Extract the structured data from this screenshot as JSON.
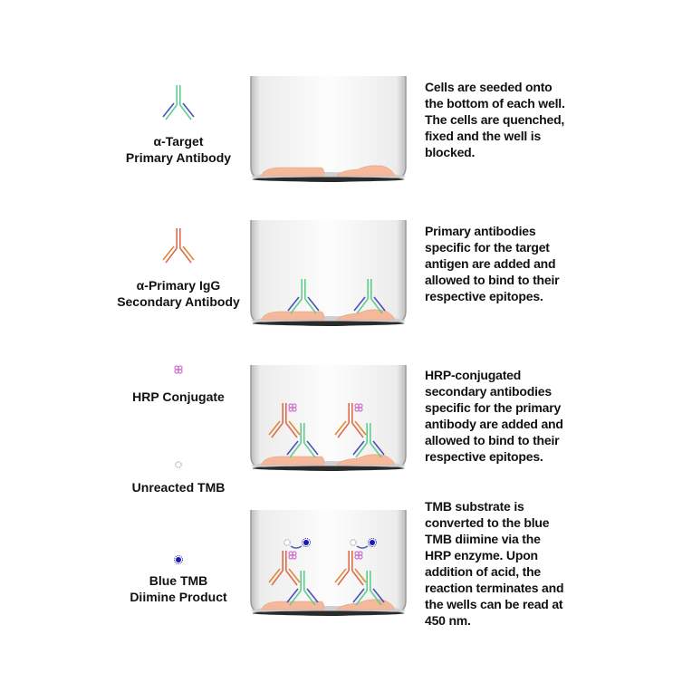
{
  "legend": {
    "primary_antibody": [
      "α-Target",
      "Primary Antibody"
    ],
    "secondary_antibody": [
      "α-Primary IgG",
      "Secondary Antibody"
    ],
    "hrp": [
      "HRP Conjugate"
    ],
    "unreacted_tmb": [
      "Unreacted TMB"
    ],
    "blue_tmb": [
      "Blue TMB",
      "Diimine Product"
    ]
  },
  "steps": [
    {
      "lines": [
        "Cells are seeded onto",
        "the bottom of each well.",
        "The cells are quenched,",
        "fixed and the well is",
        "blocked."
      ]
    },
    {
      "lines": [
        "Primary antibodies",
        "specific for the target",
        "antigen are added and",
        "allowed to bind to their",
        "respective epitopes."
      ]
    },
    {
      "lines": [
        "HRP-conjugated",
        "secondary antibodies",
        "specific for the primary",
        "antibody are added and",
        "allowed to bind to their",
        "respective epitopes."
      ]
    },
    {
      "lines": [
        "TMB substrate is",
        "converted to the blue",
        "TMB diimine via the",
        "HRP enzyme. Upon",
        "addition of acid, the",
        "reaction terminates and",
        "the wells can be read at",
        "450 nm."
      ]
    }
  ],
  "colors": {
    "primary_heavy": "#5cd08a",
    "primary_light": "#4a4fc0",
    "secondary_heavy": "#e06a50",
    "secondary_light": "#e08a30",
    "hrp": "#d070d0",
    "tmb_blue": "#1a1ab0",
    "cell": "#f5b89a"
  }
}
